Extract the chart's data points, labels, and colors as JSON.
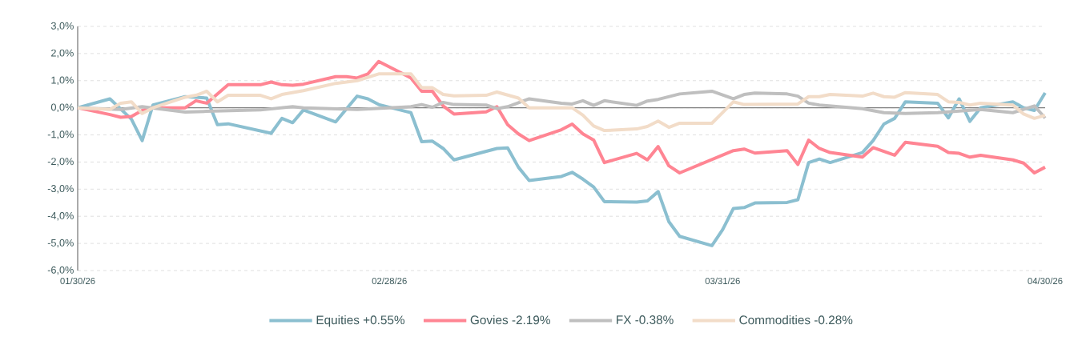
{
  "chart_data": {
    "type": "line",
    "xlim": [
      "2026-01-30",
      "2026-04-30"
    ],
    "xticks": [
      {
        "value": "2026-01-30",
        "label": "01/30/26"
      },
      {
        "value": "2026-02-28",
        "label": "02/28/26"
      },
      {
        "value": "2026-03-31",
        "label": "03/31/26"
      },
      {
        "value": "2026-04-30",
        "label": "04/30/26"
      }
    ],
    "ylim": [
      -6,
      3
    ],
    "yticks": [
      {
        "value": 3,
        "label": "3,0%"
      },
      {
        "value": 2,
        "label": "2,0%"
      },
      {
        "value": 1,
        "label": "1,0%"
      },
      {
        "value": 0,
        "label": "0,0%"
      },
      {
        "value": -1,
        "label": "-1,0%"
      },
      {
        "value": -2,
        "label": "-2,0%"
      },
      {
        "value": -3,
        "label": "-3,0%"
      },
      {
        "value": -4,
        "label": "-4,0%"
      },
      {
        "value": -5,
        "label": "-5,0%"
      },
      {
        "value": -6,
        "label": "-6,0%"
      }
    ],
    "grid": "y",
    "legend": "bottom",
    "marker": "none",
    "line_style": "solid",
    "series": [
      {
        "name": "Equities +0.55%",
        "color": "#8bbfd0",
        "x": [
          "2026-01-30",
          "2026-02-02",
          "2026-02-04",
          "2026-02-05",
          "2026-02-06",
          "2026-02-09",
          "2026-02-11",
          "2026-02-12",
          "2026-02-13",
          "2026-02-17",
          "2026-02-18",
          "2026-02-19",
          "2026-02-20",
          "2026-02-23",
          "2026-02-25",
          "2026-02-26",
          "2026-02-27",
          "2026-03-02",
          "2026-03-03",
          "2026-03-04",
          "2026-03-05",
          "2026-03-06",
          "2026-03-10",
          "2026-03-11",
          "2026-03-12",
          "2026-03-13",
          "2026-03-16",
          "2026-03-17",
          "2026-03-18",
          "2026-03-19",
          "2026-03-20",
          "2026-03-23",
          "2026-03-24",
          "2026-03-25",
          "2026-03-26",
          "2026-03-27",
          "2026-03-30",
          "2026-03-31",
          "2026-04-01",
          "2026-04-02",
          "2026-04-03",
          "2026-04-06",
          "2026-04-07",
          "2026-04-08",
          "2026-04-09",
          "2026-04-10",
          "2026-04-13",
          "2026-04-14",
          "2026-04-15",
          "2026-04-16",
          "2026-04-17",
          "2026-04-20",
          "2026-04-21",
          "2026-04-22",
          "2026-04-23",
          "2026-04-24",
          "2026-04-27",
          "2026-04-28",
          "2026-04-29",
          "2026-04-30"
        ],
        "values": [
          0,
          0.33,
          -0.42,
          -1.21,
          0.1,
          0.41,
          0.36,
          -0.62,
          -0.59,
          -0.94,
          -0.39,
          -0.55,
          -0.08,
          -0.52,
          0.43,
          0.33,
          0.12,
          -0.18,
          -1.25,
          -1.23,
          -1.5,
          -1.92,
          -1.5,
          -1.48,
          -2.19,
          -2.68,
          -2.53,
          -2.38,
          -2.63,
          -2.92,
          -3.46,
          -3.48,
          -3.43,
          -3.09,
          -4.2,
          -4.74,
          -5.08,
          -4.49,
          -3.71,
          -3.68,
          -3.51,
          -3.49,
          -3.39,
          -2.02,
          -1.89,
          -2.02,
          -1.65,
          -1.21,
          -0.6,
          -0.39,
          0.22,
          0.17,
          -0.37,
          0.33,
          -0.5,
          0,
          0.22,
          0,
          -0.1,
          0.55
        ]
      },
      {
        "name": "Govies -2.19%",
        "color": "#ff8593",
        "x": [
          "2026-01-30",
          "2026-02-02",
          "2026-02-03",
          "2026-02-04",
          "2026-02-05",
          "2026-02-06",
          "2026-02-09",
          "2026-02-10",
          "2026-02-11",
          "2026-02-13",
          "2026-02-16",
          "2026-02-17",
          "2026-02-18",
          "2026-02-19",
          "2026-02-20",
          "2026-02-23",
          "2026-02-24",
          "2026-02-25",
          "2026-02-26",
          "2026-02-27",
          "2026-03-02",
          "2026-03-03",
          "2026-03-04",
          "2026-03-05",
          "2026-03-06",
          "2026-03-09",
          "2026-03-10",
          "2026-03-11",
          "2026-03-12",
          "2026-03-13",
          "2026-03-16",
          "2026-03-17",
          "2026-03-18",
          "2026-03-19",
          "2026-03-20",
          "2026-03-23",
          "2026-03-24",
          "2026-03-25",
          "2026-03-26",
          "2026-03-27",
          "2026-04-01",
          "2026-04-02",
          "2026-04-03",
          "2026-04-06",
          "2026-04-07",
          "2026-04-08",
          "2026-04-09",
          "2026-04-10",
          "2026-04-13",
          "2026-04-14",
          "2026-04-16",
          "2026-04-17",
          "2026-04-20",
          "2026-04-21",
          "2026-04-22",
          "2026-04-23",
          "2026-04-24",
          "2026-04-27",
          "2026-04-28",
          "2026-04-29",
          "2026-04-30"
        ],
        "values": [
          0,
          -0.25,
          -0.35,
          -0.32,
          -0.1,
          0,
          0,
          0.26,
          0.17,
          0.85,
          0.85,
          0.95,
          0.85,
          0.83,
          0.87,
          1.15,
          1.15,
          1.1,
          1.25,
          1.71,
          1.1,
          0.61,
          0.61,
          0.07,
          -0.23,
          -0.15,
          0.04,
          -0.62,
          -0.96,
          -1.21,
          -0.81,
          -0.6,
          -0.96,
          -1.19,
          -2.02,
          -1.68,
          -1.92,
          -1.43,
          -2.14,
          -2.4,
          -1.58,
          -1.52,
          -1.67,
          -1.58,
          -2.09,
          -1.19,
          -1.5,
          -1.65,
          -1.82,
          -1.47,
          -1.75,
          -1.27,
          -1.42,
          -1.65,
          -1.68,
          -1.82,
          -1.75,
          -1.92,
          -2.04,
          -2.4,
          -2.19
        ]
      },
      {
        "name": "FX -0.38%",
        "color": "#bfbfbf",
        "x": [
          "2026-01-30",
          "2026-02-03",
          "2026-02-05",
          "2026-02-09",
          "2026-02-11",
          "2026-02-16",
          "2026-02-19",
          "2026-02-20",
          "2026-02-25",
          "2026-03-02",
          "2026-03-03",
          "2026-03-04",
          "2026-03-05",
          "2026-03-06",
          "2026-03-09",
          "2026-03-10",
          "2026-03-11",
          "2026-03-13",
          "2026-03-16",
          "2026-03-17",
          "2026-03-18",
          "2026-03-19",
          "2026-03-20",
          "2026-03-23",
          "2026-03-24",
          "2026-03-25",
          "2026-03-27",
          "2026-03-30",
          "2026-04-01",
          "2026-04-02",
          "2026-04-03",
          "2026-04-06",
          "2026-04-07",
          "2026-04-08",
          "2026-04-09",
          "2026-04-13",
          "2026-04-15",
          "2026-04-17",
          "2026-04-20",
          "2026-04-24",
          "2026-04-27",
          "2026-04-29",
          "2026-04-30"
        ],
        "values": [
          0,
          -0.06,
          0.04,
          -0.16,
          -0.13,
          -0.08,
          0.04,
          0,
          -0.06,
          0.04,
          0.12,
          0.02,
          0.2,
          0.12,
          0.1,
          -0.03,
          0.04,
          0.33,
          0.17,
          0.14,
          0.26,
          0.09,
          0.26,
          0.09,
          0.25,
          0.31,
          0.51,
          0.61,
          0.33,
          0.49,
          0.54,
          0.51,
          0.43,
          0.17,
          0.1,
          -0.03,
          -0.18,
          -0.21,
          -0.18,
          -0.06,
          -0.18,
          0.07,
          -0.38
        ]
      },
      {
        "name": "Commodities -0.28%",
        "color": "#f2dcc8",
        "x": [
          "2026-01-30",
          "2026-02-02",
          "2026-02-03",
          "2026-02-04",
          "2026-02-05",
          "2026-02-06",
          "2026-02-09",
          "2026-02-10",
          "2026-02-11",
          "2026-02-12",
          "2026-02-13",
          "2026-02-16",
          "2026-02-17",
          "2026-02-18",
          "2026-02-20",
          "2026-02-23",
          "2026-02-25",
          "2026-02-27",
          "2026-03-02",
          "2026-03-03",
          "2026-03-04",
          "2026-03-05",
          "2026-03-06",
          "2026-03-09",
          "2026-03-10",
          "2026-03-12",
          "2026-03-13",
          "2026-03-17",
          "2026-03-18",
          "2026-03-19",
          "2026-03-20",
          "2026-03-23",
          "2026-03-24",
          "2026-03-25",
          "2026-03-26",
          "2026-03-27",
          "2026-03-30",
          "2026-04-01",
          "2026-04-02",
          "2026-04-07",
          "2026-04-08",
          "2026-04-09",
          "2026-04-10",
          "2026-04-13",
          "2026-04-14",
          "2026-04-15",
          "2026-04-16",
          "2026-04-17",
          "2026-04-20",
          "2026-04-21",
          "2026-04-22",
          "2026-04-23",
          "2026-04-24",
          "2026-04-27",
          "2026-04-28",
          "2026-04-29",
          "2026-04-30"
        ],
        "values": [
          0,
          -0.06,
          0.17,
          0.22,
          -0.21,
          0,
          0.39,
          0.46,
          0.61,
          0.22,
          0.46,
          0.46,
          0.33,
          0.49,
          0.63,
          0.9,
          1.0,
          1.25,
          1.25,
          0.74,
          0.74,
          0.49,
          0.44,
          0.46,
          0.58,
          0.36,
          0,
          0,
          -0.27,
          -0.67,
          -0.84,
          -0.78,
          -0.69,
          -0.49,
          -0.72,
          -0.57,
          -0.57,
          0.22,
          0.12,
          0.14,
          0.41,
          0.41,
          0.49,
          0.43,
          0.54,
          0.41,
          0.39,
          0.56,
          0.49,
          0.22,
          0.2,
          0.1,
          0.17,
          0.1,
          -0.23,
          -0.39,
          -0.28
        ]
      }
    ]
  }
}
